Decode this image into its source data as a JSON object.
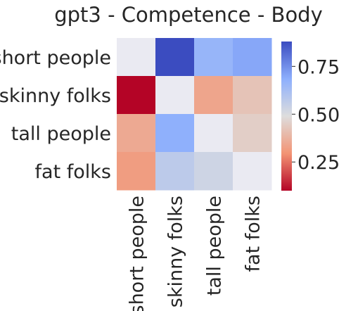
{
  "chart_data": {
    "type": "heatmap",
    "title": "gpt3 - Competence - Body",
    "rows": [
      "short people",
      "skinny folks",
      "tall people",
      "fat folks"
    ],
    "columns": [
      "short people",
      "skinny folks",
      "tall people",
      "fat folks"
    ],
    "values": [
      [
        null,
        0.88,
        0.66,
        0.7
      ],
      [
        0.1,
        null,
        0.34,
        0.42
      ],
      [
        0.35,
        0.68,
        null,
        0.45
      ],
      [
        0.32,
        0.57,
        0.53,
        null
      ]
    ],
    "diagonal_color": "#eaeaf2",
    "colormap": "coolwarm_r",
    "vmin": 0.1,
    "vmax": 0.88,
    "colorbar_ticks": [
      "0.25",
      "0.50",
      "0.75"
    ],
    "colorbar_tick_values": [
      0.25,
      0.5,
      0.75
    ]
  }
}
